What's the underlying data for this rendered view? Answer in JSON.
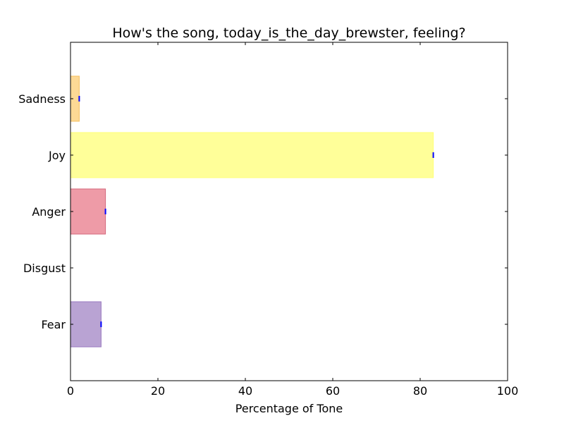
{
  "chart_data": {
    "type": "bar",
    "orientation": "horizontal",
    "title": "How's the song, today_is_the_day_brewster, feeling?",
    "xlabel": "Percentage of Tone",
    "ylabel": "",
    "xlim": [
      0,
      100
    ],
    "xticks": [
      0,
      20,
      40,
      60,
      80,
      100
    ],
    "categories": [
      "Fear",
      "Disgust",
      "Anger",
      "Joy",
      "Sadness"
    ],
    "values": [
      7,
      0,
      8,
      83,
      2
    ],
    "colors": [
      "#b9a3d3",
      "#66bb66",
      "#ee9ba7",
      "#ffff99",
      "#fdd995"
    ],
    "edge_colors": [
      "#9a7bc0",
      "#449944",
      "#d46a7e",
      "#ffff77",
      "#f5c060"
    ],
    "error_marker_color": "#0000ff",
    "grid": false,
    "legend": "none"
  }
}
